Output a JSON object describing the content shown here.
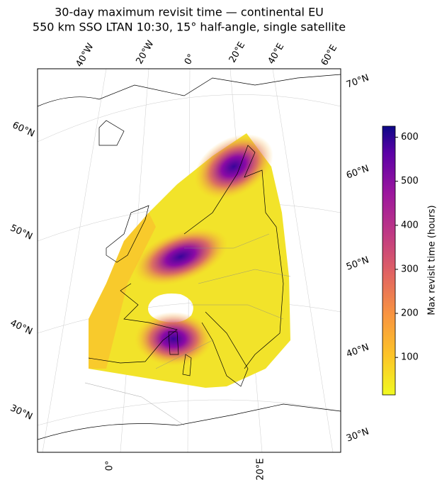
{
  "chart_data": {
    "type": "map",
    "title": "30-day maximum revisit time — continental EU",
    "subtitle": "550 km SSO LTAN 10:30, 15° half-angle, single satellite",
    "graticule_labels": {
      "top": [
        "40°W",
        "20°W",
        "0°",
        "20°E",
        "40°E",
        "60°E"
      ],
      "left": [
        "60°N",
        "50°N",
        "40°N",
        "30°N"
      ],
      "right": [
        "70°N",
        "60°N",
        "50°N",
        "40°N",
        "30°N"
      ],
      "bottom": [
        "0°",
        "20°E"
      ]
    },
    "colorbar": {
      "label": "Max revisit time (hours)",
      "colormap": "plasma",
      "lim": [
        15,
        625
      ],
      "ticks": [
        100,
        200,
        300,
        400,
        500,
        600
      ]
    }
  }
}
